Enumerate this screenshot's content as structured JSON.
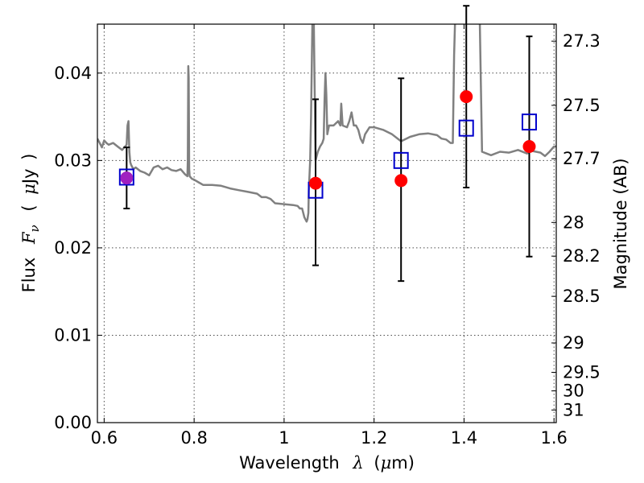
{
  "chart_data": {
    "type": "scatter",
    "title": "",
    "xlabel": "Wavelength",
    "xlabel_symbol": "λ",
    "xlabel_unit_open": "(",
    "xlabel_unit_mu": "μ",
    "xlabel_unit_rest": "m)",
    "ylabel": "Flux",
    "ylabel_symbol": "F",
    "ylabel_subscript": "ν",
    "ylabel_unit_open": "(",
    "ylabel_unit_mu": "μ",
    "ylabel_unit_rest": "Jy",
    "ylabel_unit_close": ")",
    "y2label": "Magnitude (AB)",
    "xlim": [
      0.585,
      1.605
    ],
    "ylim": [
      0.0,
      0.0456
    ],
    "grid": true,
    "x_ticks": [
      {
        "value": 0.6,
        "label": "0.6"
      },
      {
        "value": 0.8,
        "label": "0.8"
      },
      {
        "value": 1.0,
        "label": "1"
      },
      {
        "value": 1.2,
        "label": "1.2"
      },
      {
        "value": 1.4,
        "label": "1.4"
      },
      {
        "value": 1.6,
        "label": "1.6"
      }
    ],
    "y_ticks": [
      {
        "value": 0.0,
        "label": "0.00"
      },
      {
        "value": 0.01,
        "label": "0.01"
      },
      {
        "value": 0.02,
        "label": "0.02"
      },
      {
        "value": 0.03,
        "label": "0.03"
      },
      {
        "value": 0.04,
        "label": "0.04"
      }
    ],
    "magnitude_ticks": [
      {
        "mag": 27.3,
        "label": "27.3"
      },
      {
        "mag": 27.5,
        "label": "27.5"
      },
      {
        "mag": 27.7,
        "label": "27.7"
      },
      {
        "mag": 28.0,
        "label": "28"
      },
      {
        "mag": 28.2,
        "label": "28.2"
      },
      {
        "mag": 28.5,
        "label": "28.5"
      },
      {
        "mag": 29.0,
        "label": "29"
      },
      {
        "mag": 29.5,
        "label": "29.5"
      },
      {
        "mag": 30.0,
        "label": "30"
      },
      {
        "mag": 31.0,
        "label": "31"
      }
    ],
    "series": [
      {
        "name": "model spectrum",
        "kind": "line",
        "color": "#808080",
        "x": [
          0.585,
          0.59,
          0.595,
          0.6,
          0.605,
          0.61,
          0.62,
          0.63,
          0.64,
          0.645,
          0.65,
          0.652,
          0.654,
          0.656,
          0.658,
          0.66,
          0.665,
          0.67,
          0.68,
          0.69,
          0.7,
          0.71,
          0.72,
          0.73,
          0.74,
          0.75,
          0.76,
          0.77,
          0.78,
          0.785,
          0.786,
          0.787,
          0.788,
          0.789,
          0.79,
          0.795,
          0.8,
          0.81,
          0.82,
          0.84,
          0.86,
          0.88,
          0.9,
          0.92,
          0.94,
          0.95,
          0.96,
          0.97,
          0.98,
          1.0,
          1.02,
          1.03,
          1.035,
          1.04,
          1.045,
          1.05,
          1.052,
          1.054,
          1.055,
          1.058,
          1.06,
          1.063,
          1.066,
          1.07,
          1.075,
          1.08,
          1.085,
          1.088,
          1.09,
          1.092,
          1.094,
          1.096,
          1.1,
          1.11,
          1.12,
          1.125,
          1.127,
          1.13,
          1.14,
          1.145,
          1.15,
          1.155,
          1.16,
          1.165,
          1.17,
          1.175,
          1.18,
          1.19,
          1.2,
          1.22,
          1.24,
          1.26,
          1.28,
          1.3,
          1.32,
          1.34,
          1.35,
          1.36,
          1.37,
          1.375,
          1.378,
          1.38,
          1.385,
          1.39,
          1.395,
          1.4,
          1.402,
          1.405,
          1.41,
          1.415,
          1.42,
          1.425,
          1.43,
          1.435,
          1.44,
          1.45,
          1.46,
          1.48,
          1.5,
          1.52,
          1.54,
          1.55,
          1.56,
          1.57,
          1.58,
          1.59,
          1.6,
          1.605
        ],
        "y": [
          0.0325,
          0.032,
          0.0315,
          0.0323,
          0.032,
          0.0318,
          0.032,
          0.0316,
          0.0312,
          0.0315,
          0.0318,
          0.034,
          0.0345,
          0.031,
          0.0298,
          0.0295,
          0.029,
          0.0292,
          0.0288,
          0.0286,
          0.0283,
          0.0292,
          0.0294,
          0.029,
          0.0292,
          0.0289,
          0.0288,
          0.029,
          0.0284,
          0.0282,
          0.03,
          0.0408,
          0.0395,
          0.029,
          0.0282,
          0.0279,
          0.0278,
          0.0275,
          0.0272,
          0.0272,
          0.0271,
          0.0268,
          0.0266,
          0.0264,
          0.0262,
          0.0258,
          0.0258,
          0.0256,
          0.0251,
          0.025,
          0.0249,
          0.0248,
          0.0245,
          0.0245,
          0.0235,
          0.023,
          0.0233,
          0.024,
          0.0265,
          0.03,
          0.035,
          0.046,
          0.046,
          0.03,
          0.031,
          0.0316,
          0.032,
          0.0325,
          0.037,
          0.04,
          0.0375,
          0.033,
          0.034,
          0.034,
          0.0345,
          0.034,
          0.0365,
          0.034,
          0.0338,
          0.0345,
          0.0355,
          0.034,
          0.034,
          0.0335,
          0.0325,
          0.032,
          0.033,
          0.0338,
          0.0338,
          0.0335,
          0.033,
          0.0322,
          0.0327,
          0.033,
          0.0331,
          0.0329,
          0.0325,
          0.0324,
          0.032,
          0.032,
          0.042,
          0.046,
          0.046,
          0.046,
          0.046,
          0.046,
          0.046,
          0.046,
          0.046,
          0.046,
          0.046,
          0.046,
          0.046,
          0.046,
          0.031,
          0.0308,
          0.0306,
          0.031,
          0.0309,
          0.0312,
          0.0308,
          0.0311,
          0.031,
          0.0309,
          0.0305,
          0.031,
          0.0316,
          0.0316
        ]
      },
      {
        "name": "model photometry",
        "kind": "square",
        "color": "#0000cc",
        "x": [
          0.65,
          1.07,
          1.26,
          1.405,
          1.545
        ],
        "y": [
          0.0281,
          0.0266,
          0.03,
          0.0337,
          0.0344
        ]
      },
      {
        "name": "observed photometry",
        "kind": "point-errorbar",
        "color": "#ff0000",
        "x": [
          0.65,
          1.07,
          1.26,
          1.405,
          1.545
        ],
        "y": [
          0.028,
          0.0274,
          0.0277,
          0.0373,
          0.0316
        ],
        "yerr_low": [
          0.0035,
          0.0094,
          0.0115,
          0.0104,
          0.0126
        ],
        "yerr_high": [
          0.0035,
          0.0096,
          0.0117,
          0.0104,
          0.0126
        ]
      }
    ],
    "annotations": [
      {
        "note": "first photometric point shown as a purple marker",
        "x": 0.65,
        "y": 0.028,
        "color": "#a020c0"
      }
    ]
  }
}
